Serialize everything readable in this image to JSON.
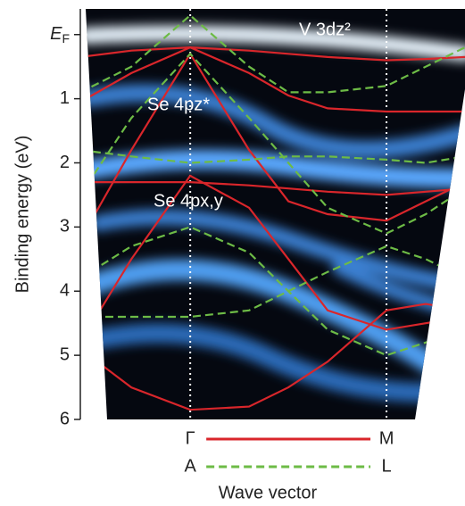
{
  "chart_data": {
    "type": "band-structure",
    "ylabel": "Binding energy (eV)",
    "xlabel": "Wave vector",
    "y_inverted": true,
    "xlim": [
      -0.56,
      1.4
    ],
    "ylim": [
      -0.4,
      6
    ],
    "xticks": [
      0,
      1
    ],
    "yticks": [
      {
        "value": 0,
        "label": "EF"
      },
      1,
      2,
      3,
      4,
      5,
      6
    ],
    "annotations": [
      "V 3dz²",
      "Se 4pz*",
      "Se 4px,y"
    ],
    "legend": [
      {
        "start": "Γ",
        "end": "M",
        "color": "#d9262b",
        "dash": false
      },
      {
        "start": "A",
        "end": "L",
        "color": "#6dbb46",
        "dash": true
      }
    ],
    "x": [
      -0.56,
      -0.3,
      0,
      0.3,
      0.5,
      0.7,
      1,
      1.2,
      1.4
    ],
    "series": [
      {
        "color": "#d9262b",
        "dash": false,
        "values": [
          0.35,
          0.25,
          0.2,
          0.25,
          0.3,
          0.35,
          0.4,
          0.38,
          0.35
        ]
      },
      {
        "color": "#d9262b",
        "dash": false,
        "values": [
          1.05,
          0.6,
          0.2,
          0.6,
          0.95,
          1.15,
          1.2,
          1.2,
          1.2
        ]
      },
      {
        "color": "#d9262b",
        "dash": false,
        "values": [
          2.3,
          2.3,
          2.3,
          2.35,
          2.4,
          2.45,
          2.5,
          2.45,
          2.4
        ]
      },
      {
        "color": "#d9262b",
        "dash": false,
        "values": [
          3.2,
          1.8,
          0.3,
          1.8,
          2.6,
          2.8,
          2.9,
          2.6,
          2.3
        ]
      },
      {
        "color": "#d9262b",
        "dash": false,
        "values": [
          4.8,
          3.5,
          2.2,
          2.7,
          3.5,
          4.3,
          4.6,
          4.5,
          4.4
        ]
      },
      {
        "color": "#d9262b",
        "dash": false,
        "values": [
          4.9,
          5.5,
          5.85,
          5.8,
          5.5,
          5.1,
          4.3,
          4.2,
          4.3
        ]
      },
      {
        "color": "#6dbb46",
        "dash": true,
        "values": [
          0.9,
          0.5,
          -0.3,
          0.5,
          0.9,
          0.9,
          0.8,
          0.5,
          0.2
        ]
      },
      {
        "color": "#6dbb46",
        "dash": true,
        "values": [
          1.8,
          1.9,
          2.0,
          1.95,
          1.9,
          1.9,
          1.95,
          2.0,
          1.9
        ]
      },
      {
        "color": "#6dbb46",
        "dash": true,
        "values": [
          3.8,
          3.3,
          3.0,
          3.4,
          4.0,
          4.6,
          5.0,
          4.8,
          4.5
        ]
      },
      {
        "color": "#6dbb46",
        "dash": true,
        "values": [
          4.4,
          4.4,
          4.4,
          4.3,
          4.0,
          3.7,
          3.3,
          3.5,
          3.8
        ]
      },
      {
        "color": "#6dbb46",
        "dash": true,
        "values": [
          2.5,
          1.3,
          0.3,
          1.3,
          2.0,
          2.7,
          3.1,
          2.8,
          2.4
        ]
      }
    ]
  }
}
